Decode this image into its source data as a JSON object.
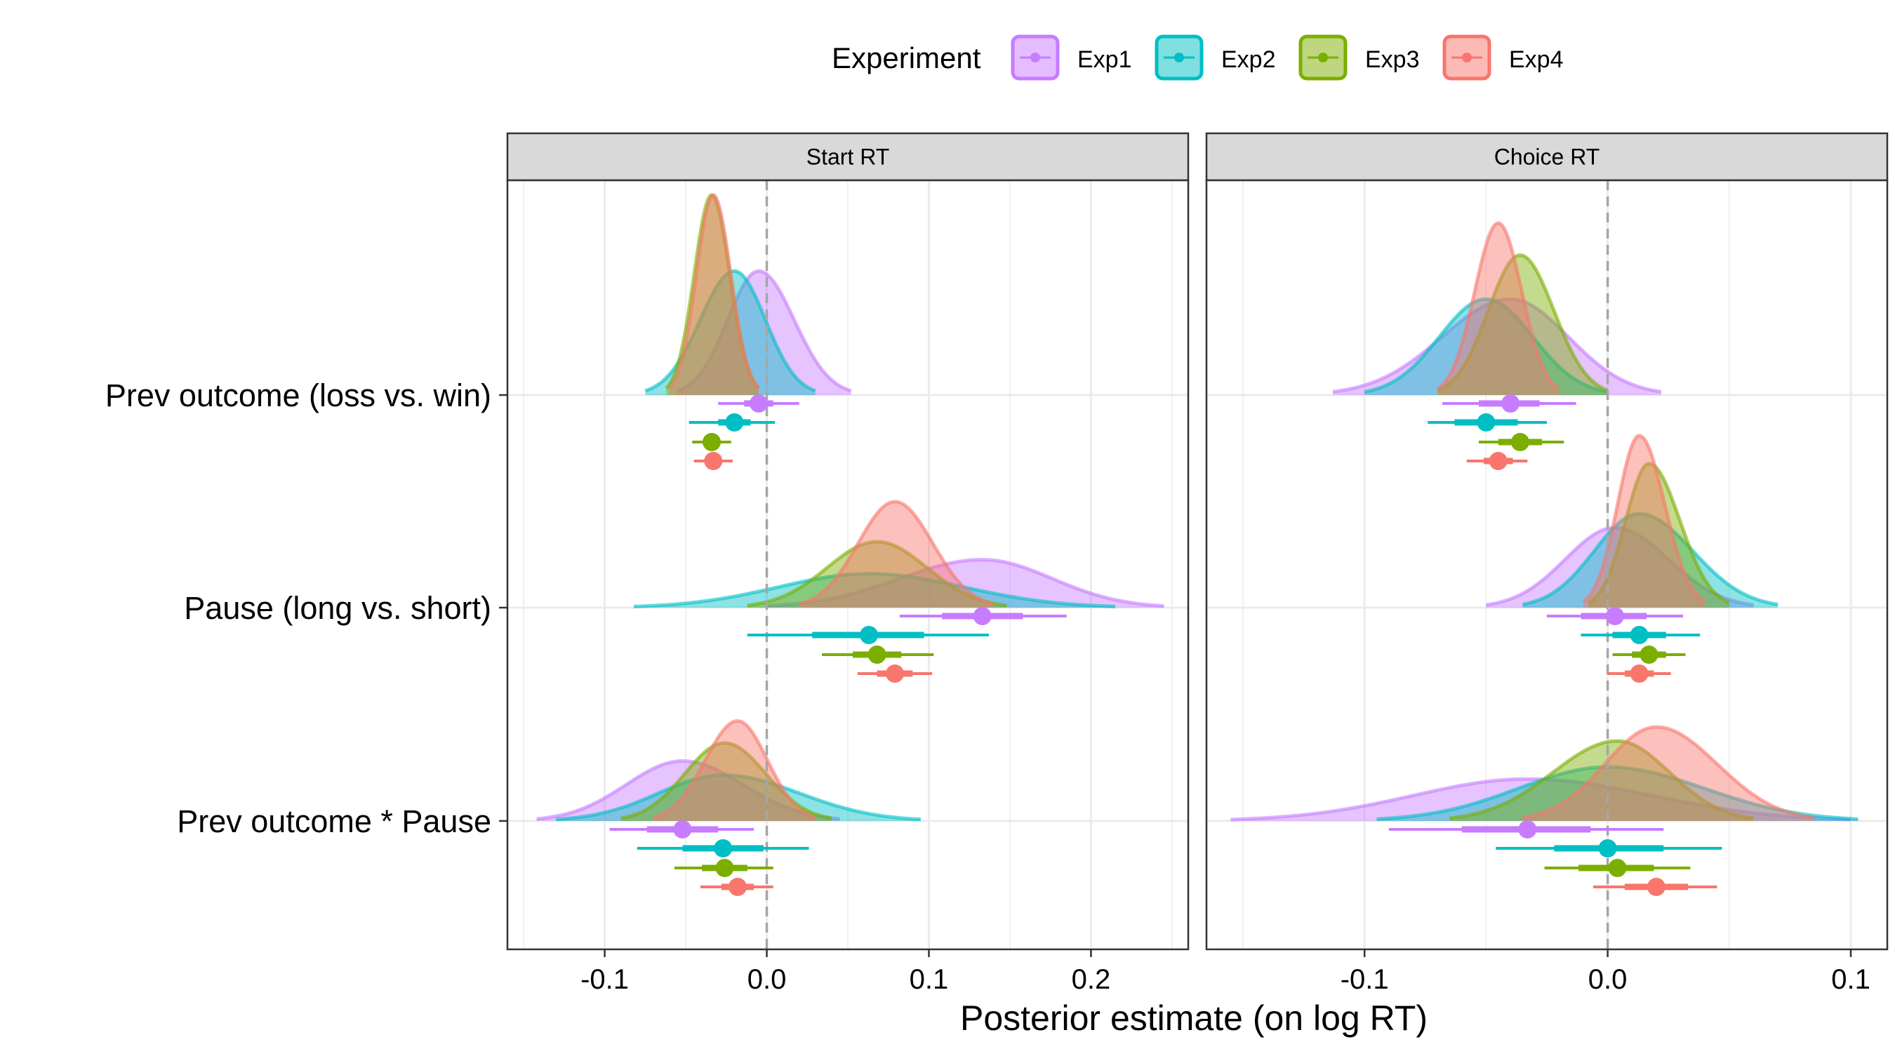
{
  "chart_data": {
    "type": "ridgeline-interval",
    "xlabel": "Posterior estimate (on log RT)",
    "legend": {
      "title": "Experiment",
      "position": "top",
      "items": [
        {
          "label": "Exp1",
          "color": "#C77CFF"
        },
        {
          "label": "Exp2",
          "color": "#00BFC4"
        },
        {
          "label": "Exp3",
          "color": "#7CAE00"
        },
        {
          "label": "Exp4",
          "color": "#F8766D"
        }
      ]
    },
    "categories": [
      "Prev outcome (loss vs. win)",
      "Pause (long vs. short)",
      "Prev outcome * Pause"
    ],
    "reference_line": 0,
    "grid": true,
    "panels": [
      {
        "title": "Start RT",
        "xlim": [
          -0.16,
          0.26
        ],
        "xticks": [
          -0.1,
          0.0,
          0.1,
          0.2
        ],
        "xtick_labels": [
          "-0.1",
          "0.0",
          "0.1",
          "0.2"
        ],
        "estimates": [
          [
            {
              "series": "Exp1",
              "median": -0.005,
              "q66": [
                -0.014,
                0.004
              ],
              "q95": [
                -0.03,
                0.02
              ],
              "dens_range": [
                -0.055,
                0.052
              ],
              "dens_peak": 0.62
            },
            {
              "series": "Exp2",
              "median": -0.02,
              "q66": [
                -0.03,
                -0.01
              ],
              "q95": [
                -0.048,
                0.005
              ],
              "dens_range": [
                -0.075,
                0.03
              ],
              "dens_peak": 0.62
            },
            {
              "series": "Exp3",
              "median": -0.034,
              "q66": [
                -0.039,
                -0.029
              ],
              "q95": [
                -0.046,
                -0.022
              ],
              "dens_range": [
                -0.062,
                -0.005
              ],
              "dens_peak": 1.0
            },
            {
              "series": "Exp4",
              "median": -0.033,
              "q66": [
                -0.038,
                -0.028
              ],
              "q95": [
                -0.045,
                -0.021
              ],
              "dens_range": [
                -0.06,
                -0.005
              ],
              "dens_peak": 1.0
            }
          ],
          [
            {
              "series": "Exp1",
              "median": 0.133,
              "q66": [
                0.108,
                0.158
              ],
              "q95": [
                0.082,
                0.185
              ],
              "dens_range": [
                0.0,
                0.245
              ],
              "dens_peak": 0.24
            },
            {
              "series": "Exp2",
              "median": 0.063,
              "q66": [
                0.028,
                0.097
              ],
              "q95": [
                -0.012,
                0.137
              ],
              "dens_range": [
                -0.082,
                0.215
              ],
              "dens_peak": 0.17
            },
            {
              "series": "Exp3",
              "median": 0.068,
              "q66": [
                0.053,
                0.083
              ],
              "q95": [
                0.034,
                0.103
              ],
              "dens_range": [
                -0.012,
                0.148
              ],
              "dens_peak": 0.33
            },
            {
              "series": "Exp4",
              "median": 0.079,
              "q66": [
                0.068,
                0.09
              ],
              "q95": [
                0.056,
                0.102
              ],
              "dens_range": [
                0.02,
                0.14
              ],
              "dens_peak": 0.53
            }
          ],
          [
            {
              "series": "Exp1",
              "median": -0.052,
              "q66": [
                -0.074,
                -0.03
              ],
              "q95": [
                -0.097,
                -0.008
              ],
              "dens_range": [
                -0.142,
                0.045
              ],
              "dens_peak": 0.3
            },
            {
              "series": "Exp2",
              "median": -0.027,
              "q66": [
                -0.052,
                -0.002
              ],
              "q95": [
                -0.08,
                0.026
              ],
              "dens_range": [
                -0.13,
                0.095
              ],
              "dens_peak": 0.23
            },
            {
              "series": "Exp3",
              "median": -0.026,
              "q66": [
                -0.04,
                -0.012
              ],
              "q95": [
                -0.057,
                0.004
              ],
              "dens_range": [
                -0.09,
                0.04
              ],
              "dens_peak": 0.39
            },
            {
              "series": "Exp4",
              "median": -0.018,
              "q66": [
                -0.028,
                -0.008
              ],
              "q95": [
                -0.041,
                0.004
              ],
              "dens_range": [
                -0.07,
                0.03
              ],
              "dens_peak": 0.5
            }
          ]
        ]
      },
      {
        "title": "Choice RT",
        "xlim": [
          -0.165,
          0.115
        ],
        "xticks": [
          -0.1,
          0.0,
          0.1
        ],
        "xtick_labels": [
          "-0.1",
          "0.0",
          "0.1"
        ],
        "estimates": [
          [
            {
              "series": "Exp1",
              "median": -0.04,
              "q66": [
                -0.053,
                -0.028
              ],
              "q95": [
                -0.068,
                -0.013
              ],
              "dens_range": [
                -0.113,
                0.022
              ],
              "dens_peak": 0.48
            },
            {
              "series": "Exp2",
              "median": -0.05,
              "q66": [
                -0.063,
                -0.037
              ],
              "q95": [
                -0.074,
                -0.025
              ],
              "dens_range": [
                -0.1,
                0.0
              ],
              "dens_peak": 0.48
            },
            {
              "series": "Exp3",
              "median": -0.036,
              "q66": [
                -0.045,
                -0.027
              ],
              "q95": [
                -0.053,
                -0.018
              ],
              "dens_range": [
                -0.07,
                0.0
              ],
              "dens_peak": 0.7
            },
            {
              "series": "Exp4",
              "median": -0.045,
              "q66": [
                -0.051,
                -0.039
              ],
              "q95": [
                -0.058,
                -0.033
              ],
              "dens_range": [
                -0.07,
                -0.02
              ],
              "dens_peak": 0.86
            }
          ],
          [
            {
              "series": "Exp1",
              "median": 0.003,
              "q66": [
                -0.011,
                0.016
              ],
              "q95": [
                -0.025,
                0.031
              ],
              "dens_range": [
                -0.05,
                0.06
              ],
              "dens_peak": 0.4
            },
            {
              "series": "Exp2",
              "median": 0.013,
              "q66": [
                0.002,
                0.024
              ],
              "q95": [
                -0.011,
                0.038
              ],
              "dens_range": [
                -0.035,
                0.07
              ],
              "dens_peak": 0.47
            },
            {
              "series": "Exp3",
              "median": 0.017,
              "q66": [
                0.01,
                0.024
              ],
              "q95": [
                0.002,
                0.032
              ],
              "dens_range": [
                -0.008,
                0.05
              ],
              "dens_peak": 0.72
            },
            {
              "series": "Exp4",
              "median": 0.013,
              "q66": [
                0.007,
                0.019
              ],
              "q95": [
                0.0,
                0.026
              ],
              "dens_range": [
                -0.01,
                0.04
              ],
              "dens_peak": 0.86
            }
          ],
          [
            {
              "series": "Exp1",
              "median": -0.033,
              "q66": [
                -0.06,
                -0.007
              ],
              "q95": [
                -0.09,
                0.023
              ],
              "dens_range": [
                -0.155,
                0.1
              ],
              "dens_peak": 0.21
            },
            {
              "series": "Exp2",
              "median": 0.0,
              "q66": [
                -0.022,
                0.023
              ],
              "q95": [
                -0.046,
                0.047
              ],
              "dens_range": [
                -0.095,
                0.103
              ],
              "dens_peak": 0.27
            },
            {
              "series": "Exp3",
              "median": 0.004,
              "q66": [
                -0.012,
                0.019
              ],
              "q95": [
                -0.026,
                0.034
              ],
              "dens_range": [
                -0.065,
                0.06
              ],
              "dens_peak": 0.4
            },
            {
              "series": "Exp4",
              "median": 0.02,
              "q66": [
                0.007,
                0.033
              ],
              "q95": [
                -0.006,
                0.045
              ],
              "dens_range": [
                -0.035,
                0.085
              ],
              "dens_peak": 0.47
            }
          ]
        ]
      }
    ]
  }
}
